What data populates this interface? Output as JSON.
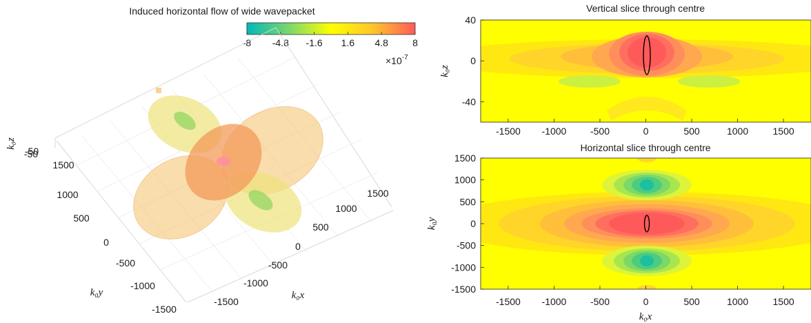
{
  "chart_data": [
    {
      "type": "isosurface-3d",
      "title": "Induced horizontal flow of wide wavepacket",
      "colorbar": {
        "ticks": [
          "-8",
          "-4.8",
          "-1.6",
          "1.6",
          "4.8",
          "8"
        ],
        "range": [
          -8,
          8
        ],
        "exponent": "×10",
        "exponent_power": "-7",
        "colors": [
          "#00b8b8",
          "#33c69a",
          "#66d47c",
          "#99e25e",
          "#ccf040",
          "#ffff00",
          "#ffe812",
          "#ffd024",
          "#ffb736",
          "#ff9e48",
          "#ff855a",
          "#ff5a5a"
        ]
      },
      "xlabel": "k₀x",
      "ylabel": "k₀y",
      "zlabel": "k₀z",
      "x_ticks": [
        "-1500",
        "-1000",
        "-500",
        "0",
        "500",
        "1000",
        "1500"
      ],
      "y_ticks": [
        "-1500",
        "-1000",
        "-500",
        "0",
        "500",
        "1000",
        "1500"
      ],
      "z_ticks": [
        "-50"
      ]
    },
    {
      "type": "heatmap",
      "title": "Vertical slice through centre",
      "ylabel": "k₀z",
      "x_ticks": [
        "-1500",
        "-1000",
        "-500",
        "0",
        "500",
        "1000",
        "1500"
      ],
      "y_ticks": [
        "40",
        "0",
        "-40"
      ],
      "xlim": [
        -1800,
        1800
      ],
      "ylim": [
        -60,
        40
      ],
      "background_color": "#ffff00"
    },
    {
      "type": "heatmap",
      "title": "Horizontal slice through centre",
      "xlabel": "k₀x",
      "ylabel": "k₀y",
      "x_ticks": [
        "-1500",
        "-1000",
        "-500",
        "0",
        "500",
        "1000",
        "1500"
      ],
      "y_ticks": [
        "1500",
        "1000",
        "500",
        "0",
        "-500",
        "-1000",
        "-1500"
      ],
      "xlim": [
        -1800,
        1800
      ],
      "ylim": [
        -1500,
        1500
      ],
      "background_color": "#ffff00"
    }
  ]
}
